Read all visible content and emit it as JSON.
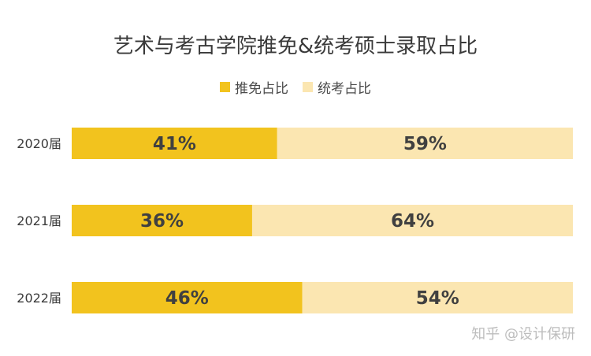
{
  "chart_data": {
    "type": "bar",
    "orientation": "horizontal",
    "stacked": true,
    "title": "艺术与考古学院推免&统考硕士录取占比",
    "categories": [
      "2020届",
      "2021届",
      "2022届"
    ],
    "series": [
      {
        "name": "推免占比",
        "values": [
          41,
          36,
          46
        ],
        "labels": [
          "41%",
          "36%",
          "46%"
        ],
        "color": "#F2C31E"
      },
      {
        "name": "统考占比",
        "values": [
          59,
          64,
          54
        ],
        "labels": [
          "59%",
          "64%",
          "54%"
        ],
        "color": "#FBE6B1"
      }
    ],
    "xlim": [
      0,
      100
    ],
    "grid": false,
    "legend_position": "top-center"
  },
  "watermark": "知乎 @设计保研"
}
